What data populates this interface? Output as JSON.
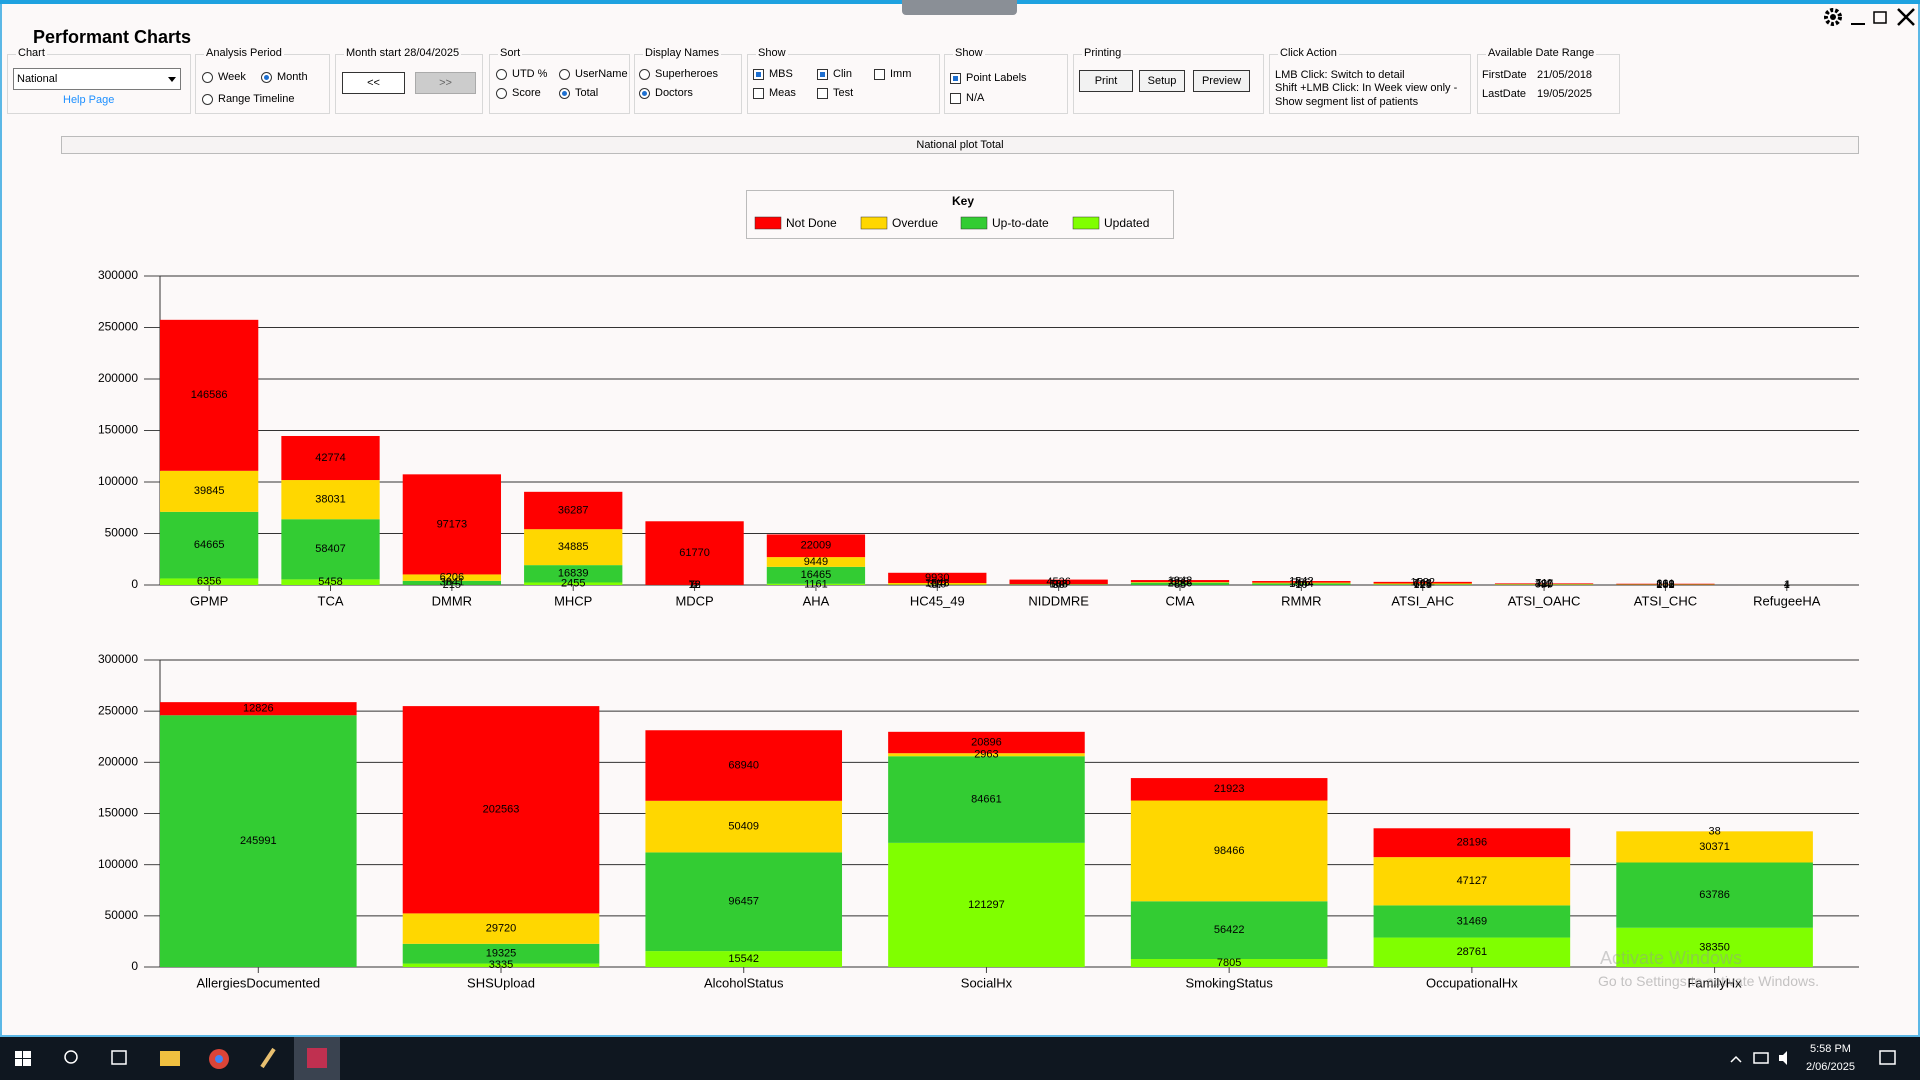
{
  "window": {
    "title": "Performant Charts"
  },
  "controls": {
    "chart": {
      "label": "Chart",
      "value": "National",
      "link": "Help Page"
    },
    "analysis_period": {
      "label": "Analysis Period",
      "options": [
        "Week",
        "Month",
        "Range Timeline"
      ],
      "selected": 1
    },
    "month_start": {
      "label": "Month start 28/04/2025",
      "buttons": [
        "<<",
        ">>"
      ]
    },
    "sort": {
      "label": "Sort",
      "options": [
        "UTD %",
        "UserName",
        "Score",
        "Total"
      ],
      "selected": 3
    },
    "display_names": {
      "label": "Display Names",
      "options": [
        "Superheroes",
        "Doctors"
      ],
      "selected": 1
    },
    "show": {
      "label": "Show",
      "options": [
        "MBS",
        "Clin",
        "Imm",
        "Meas",
        "Test"
      ],
      "checked": [
        true,
        true,
        false,
        false,
        false
      ]
    },
    "show_labels": {
      "label": "Show",
      "options": [
        "Point Labels",
        "N/A"
      ],
      "checked": [
        true,
        false
      ]
    },
    "printing": {
      "label": "Printing",
      "buttons": [
        "Print",
        "Setup",
        "Preview"
      ]
    },
    "click_action": {
      "label": "Click Action",
      "lines": [
        "LMB Click: Switch to detail",
        "Shift +LMB Click:  In Week view only -",
        "Show segment list of patients"
      ]
    },
    "date_range": {
      "label": "Available Date Range",
      "rows": [
        [
          "FirstDate",
          "21/05/2018"
        ],
        [
          "LastDate",
          "19/05/2025"
        ]
      ]
    }
  },
  "plot_title": "National plot Total",
  "key_title": "Key",
  "chart_data": [
    {
      "type": "bar",
      "stacked": true,
      "grid": true,
      "categories": [
        "GPMP",
        "TCA",
        "DMMR",
        "MHCP",
        "MDCP",
        "AHA",
        "HC45_49",
        "NIDDMRE",
        "CMA",
        "RMMR",
        "ATSI_AHC",
        "ATSI_OAHC",
        "ATSI_CHC",
        "RefugeeHA"
      ],
      "series": [
        {
          "name": "Not Done",
          "color": "#ff0000",
          "values": [
            146586,
            42774,
            97173,
            36287,
            61770,
            22009,
            9930,
            4536,
            1942,
            1542,
            1532,
            711,
            661,
            4
          ]
        },
        {
          "name": "Overdue",
          "color": "#ffd700",
          "values": [
            39845,
            38031,
            6206,
            34885,
            72,
            9449,
            1548,
            186,
            558,
            756,
            763,
            427,
            208,
            null
          ]
        },
        {
          "name": "Up-to-date",
          "color": "#33cc33",
          "values": [
            64665,
            58407,
            3841,
            16839,
            18,
            16465,
            319,
            503,
            2236,
            1544,
            621,
            380,
            219,
            null
          ]
        },
        {
          "name": "Updated",
          "color": "#80ff00",
          "values": [
            6356,
            5458,
            215,
            2455,
            6,
            1161,
            67,
            30,
            65,
            10,
            125,
            44,
            152,
            1
          ]
        }
      ],
      "ylim": [
        0,
        300000
      ],
      "yticks": [
        0,
        50000,
        100000,
        150000,
        200000,
        250000,
        300000
      ]
    },
    {
      "type": "bar",
      "stacked": true,
      "grid": true,
      "categories": [
        "AllergiesDocumented",
        "SHSUpload",
        "AlcoholStatus",
        "SocialHx",
        "SmokingStatus",
        "OccupationalHx",
        "FamilyHx"
      ],
      "series": [
        {
          "color": "#ff0000",
          "values": [
            12826,
            202563,
            68940,
            20896,
            21923,
            28196,
            38
          ]
        },
        {
          "color": "#ffd700",
          "values": [
            null,
            29720,
            50409,
            2963,
            98466,
            47127,
            30371
          ]
        },
        {
          "color": "#33cc33",
          "values": [
            245991,
            19325,
            96457,
            84661,
            56422,
            31469,
            63786
          ]
        },
        {
          "color": "#80ff00",
          "values": [
            null,
            3335,
            15542,
            121297,
            7805,
            28761,
            38350
          ]
        }
      ],
      "ylim": [
        0,
        300000
      ],
      "yticks": [
        0,
        50000,
        100000,
        150000,
        200000,
        250000,
        300000
      ]
    }
  ],
  "watermark": {
    "line1": "Activate Windows",
    "line2": "Go to Settings to activate Windows."
  },
  "taskbar": {
    "time": "5:58 PM",
    "date": "2/06/2025"
  }
}
